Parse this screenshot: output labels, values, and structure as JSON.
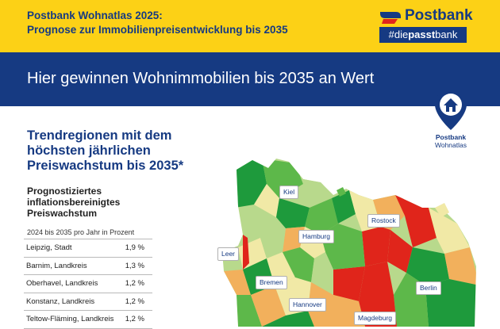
{
  "header": {
    "title_line1": "Postbank Wohnatlas 2025:",
    "title_line2": "Prognose zur Immobilienpreisentwicklung bis 2035",
    "logo_text": "Postbank",
    "tagline_prefix": "#die",
    "tagline_bold": "passt",
    "tagline_suffix": "bank"
  },
  "banner": {
    "text": "Hier gewinnen Wohnimmobilien bis 2035 an Wert"
  },
  "badge": {
    "line1": "Postbank",
    "line2": "Wohnatlas",
    "icon": "house-pin-icon"
  },
  "section": {
    "title_lines": [
      "Trendregionen mit dem",
      "höchsten jährlichen",
      "Preiswachstum bis 2035*"
    ],
    "subtitle_lines": [
      "Prognostiziertes",
      "inflationsbereinigtes",
      "Preiswachstum"
    ],
    "caption": "2024 bis 2035 pro Jahr in Prozent"
  },
  "table": [
    {
      "name": "Leipzig,",
      "type": "Stadt",
      "value": "1,9 %"
    },
    {
      "name": "Barnim,",
      "type": "Landkreis",
      "value": "1,3 %"
    },
    {
      "name": "Oberhavel,",
      "type": "Landkreis",
      "value": "1,2 %"
    },
    {
      "name": "Konstanz,",
      "type": "Landkreis",
      "value": "1,2 %"
    },
    {
      "name": "Teltow-Fläming,",
      "type": "Landkreis",
      "value": "1,2 %"
    }
  ],
  "map": {
    "cities": [
      "Kiel",
      "Rostock",
      "Hamburg",
      "Leer",
      "Bremen",
      "Berlin",
      "Hannover",
      "Magdeburg"
    ],
    "colors": {
      "dark_green": "#1e9a3c",
      "green": "#5db84a",
      "light_green": "#b8d98c",
      "pale": "#f1e9a6",
      "orange": "#f2b05c",
      "red": "#e0251b"
    }
  },
  "colors": {
    "brand_yellow": "#fcd116",
    "brand_blue": "#163a82"
  }
}
